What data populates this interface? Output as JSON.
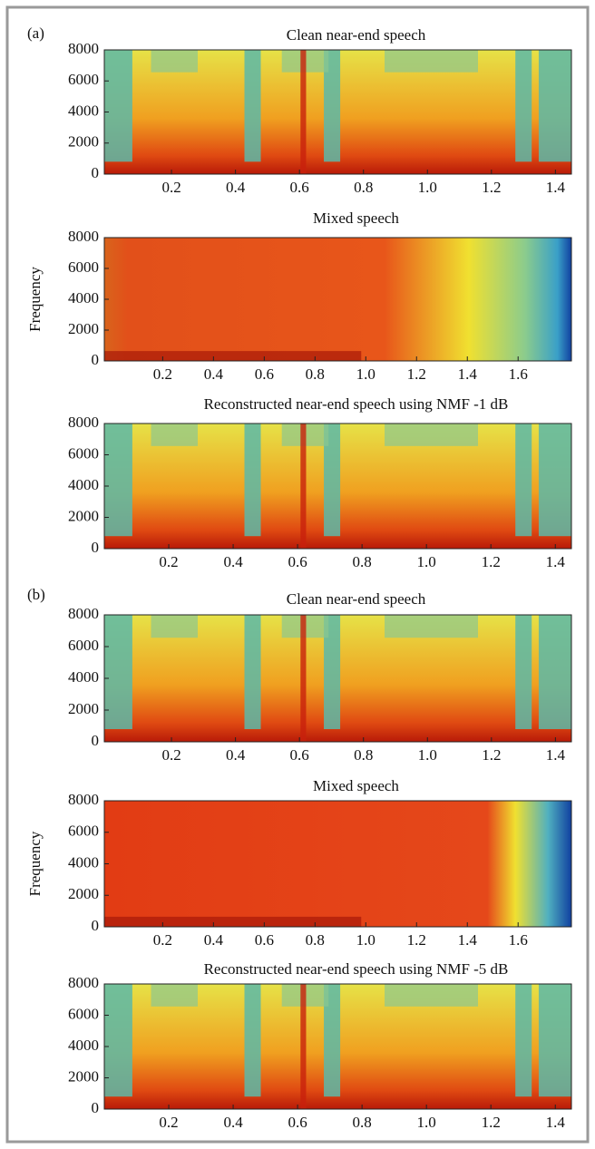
{
  "chart_data": [
    {
      "type": "spectrogram",
      "panel_label": "(a)",
      "title": "Clean near-end speech",
      "xlim": [
        -0.01,
        1.45
      ],
      "ylim": [
        0,
        8000
      ],
      "xticks": [
        0.2,
        0.4,
        0.6,
        0.8,
        {
          "value": 1,
          "label": "1.0"
        },
        1.2,
        1.4
      ],
      "yticks": [
        0,
        2000,
        4000,
        6000,
        8000
      ]
    },
    {
      "type": "spectrogram",
      "title": "Mixed speech",
      "ylabel": "Frequency",
      "xlim": [
        -0.03,
        1.81
      ],
      "ylim": [
        0,
        8000
      ],
      "xticks": [
        0.2,
        0.4,
        0.6,
        0.8,
        {
          "value": 1,
          "label": "1.0"
        },
        1.2,
        1.4,
        1.6
      ],
      "yticks": [
        0,
        2000,
        4000,
        6000,
        8000
      ]
    },
    {
      "type": "spectrogram",
      "title": "Reconstructed near-end speech using NMF -1 dB",
      "xlim": [
        0,
        1.45
      ],
      "ylim": [
        0,
        8000
      ],
      "xticks": [
        0.2,
        0.4,
        0.6,
        0.8,
        {
          "value": 1,
          "label": "1.0"
        },
        1.2,
        1.4
      ],
      "yticks": [
        0,
        2000,
        4000,
        6000,
        8000
      ]
    },
    {
      "type": "spectrogram",
      "panel_label": "(b)",
      "title": "Clean near-end speech",
      "xlim": [
        -0.01,
        1.45
      ],
      "ylim": [
        0,
        8000
      ],
      "xticks": [
        0.2,
        0.4,
        0.6,
        0.8,
        {
          "value": 1,
          "label": "1.0"
        },
        1.2,
        1.4
      ],
      "yticks": [
        0,
        2000,
        4000,
        6000,
        8000
      ]
    },
    {
      "type": "spectrogram",
      "title": "Mixed speech",
      "ylabel": "Frequency",
      "xlim": [
        -0.03,
        1.81
      ],
      "ylim": [
        0,
        8000
      ],
      "xticks": [
        0.2,
        0.4,
        0.6,
        0.8,
        {
          "value": 1,
          "label": "1.0"
        },
        1.2,
        1.4,
        1.6
      ],
      "yticks": [
        0,
        2000,
        4000,
        6000,
        8000
      ]
    },
    {
      "type": "spectrogram",
      "title": "Reconstructed near-end speech using NMF -5 dB",
      "xlim": [
        0,
        1.45
      ],
      "ylim": [
        0,
        8000
      ],
      "xticks": [
        0.2,
        0.4,
        0.6,
        0.8,
        {
          "value": 1,
          "label": "1.0"
        },
        1.2,
        1.4
      ],
      "yticks": [
        0,
        2000,
        4000,
        6000,
        8000
      ]
    }
  ]
}
